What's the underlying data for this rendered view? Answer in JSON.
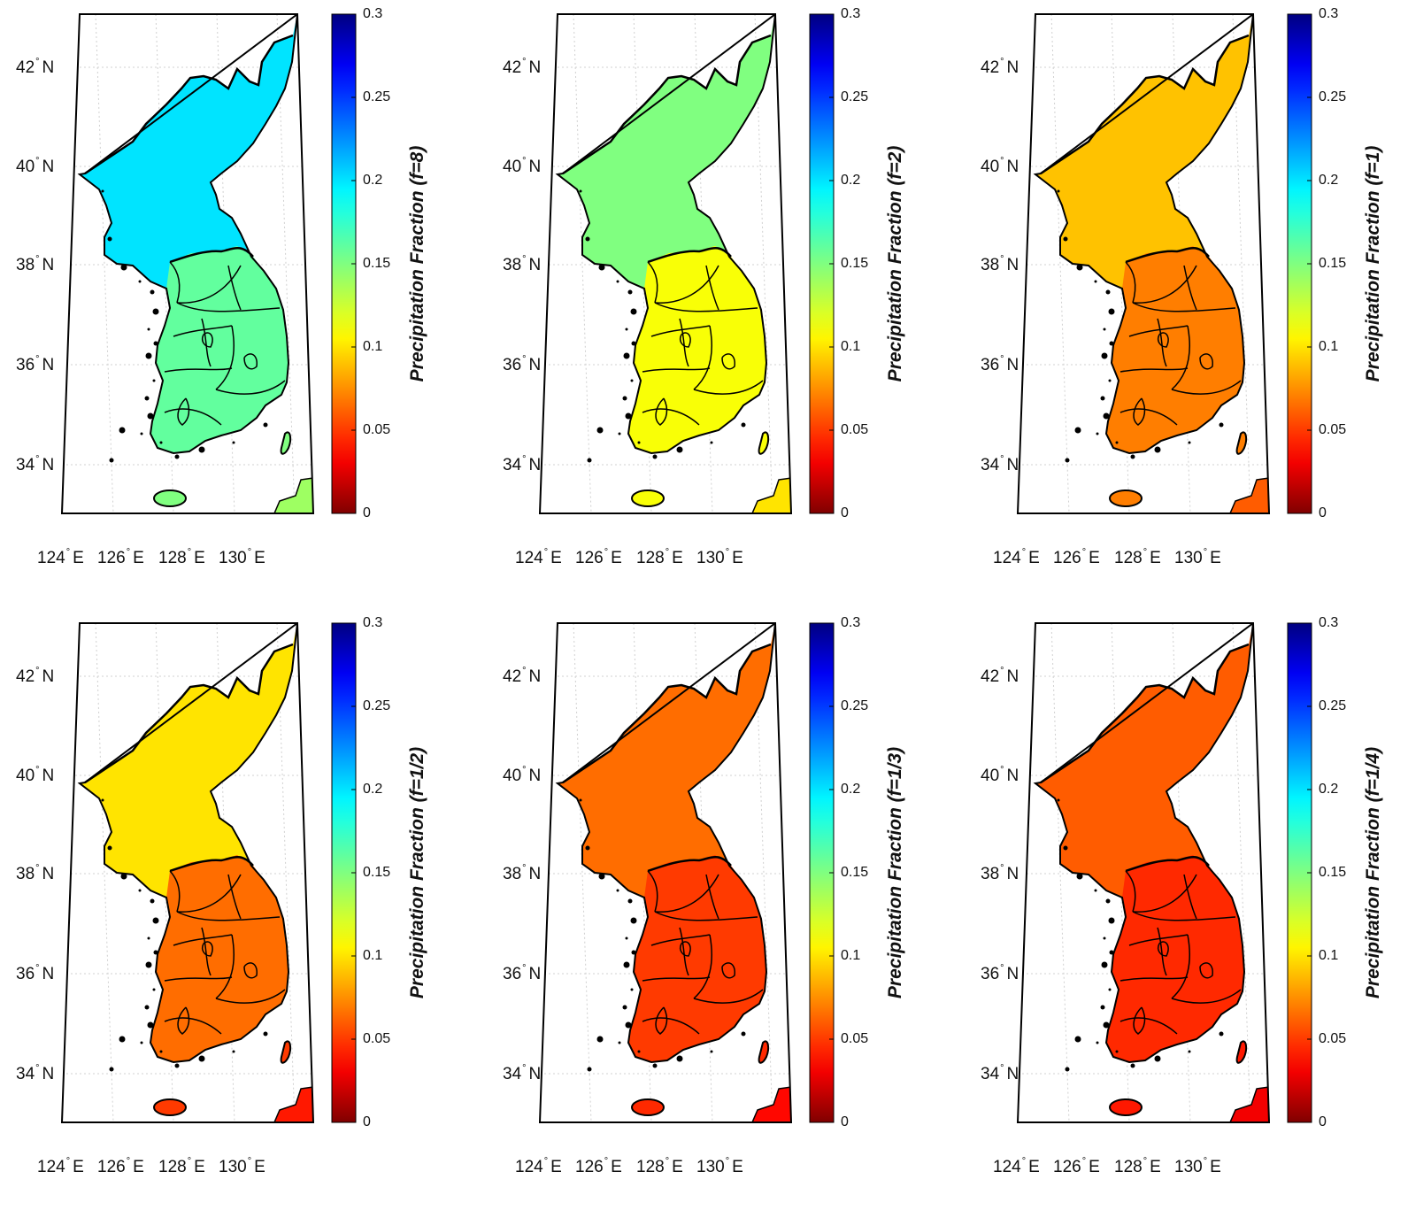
{
  "figure": {
    "colorbar": {
      "colormap": "jet-reversed",
      "ticks": [
        "0.3",
        "0.25",
        "0.2",
        "0.15",
        "0.1",
        "0.05",
        "0"
      ],
      "range": [
        0,
        0.3
      ],
      "title_prefix": "Precipitation Fraction"
    },
    "lat_labels": [
      {
        "deg": "42",
        "hem": "N"
      },
      {
        "deg": "40",
        "hem": "N"
      },
      {
        "deg": "38",
        "hem": "N"
      },
      {
        "deg": "36",
        "hem": "N"
      },
      {
        "deg": "34",
        "hem": "N"
      }
    ],
    "lon_labels": [
      {
        "deg": "124",
        "hem": "E"
      },
      {
        "deg": "126",
        "hem": "E"
      },
      {
        "deg": "128",
        "hem": "E"
      },
      {
        "deg": "130",
        "hem": "E"
      }
    ],
    "panels": [
      {
        "factor": "(f=8)",
        "cb_label": "Precipitation Fraction (f=8)",
        "north_value": 0.2,
        "south_value": 0.16,
        "islands_value": 0.15
      },
      {
        "factor": "(f=2)",
        "cb_label": "Precipitation Fraction (f=2)",
        "north_value": 0.15,
        "south_value": 0.11,
        "islands_value": 0.11
      },
      {
        "factor": "(f=1)",
        "cb_label": "Precipitation Fraction (f=1)",
        "north_value": 0.09,
        "south_value": 0.07,
        "islands_value": 0.07
      },
      {
        "factor": "(f=1/2)",
        "cb_label": "Precipitation Fraction (f=1/2)",
        "north_value": 0.1,
        "south_value": 0.065,
        "islands_value": 0.05
      },
      {
        "factor": "(f=1/3)",
        "cb_label": "Precipitation Fraction (f=1/3)",
        "north_value": 0.065,
        "south_value": 0.05,
        "islands_value": 0.045
      },
      {
        "factor": "(f=1/4)",
        "cb_label": "Precipitation Fraction (f=1/4)",
        "north_value": 0.06,
        "south_value": 0.045,
        "islands_value": 0.04
      }
    ],
    "colors": {
      "frame": "#000000",
      "grid": "#d0d0d0",
      "land_outline": "#000000"
    }
  }
}
